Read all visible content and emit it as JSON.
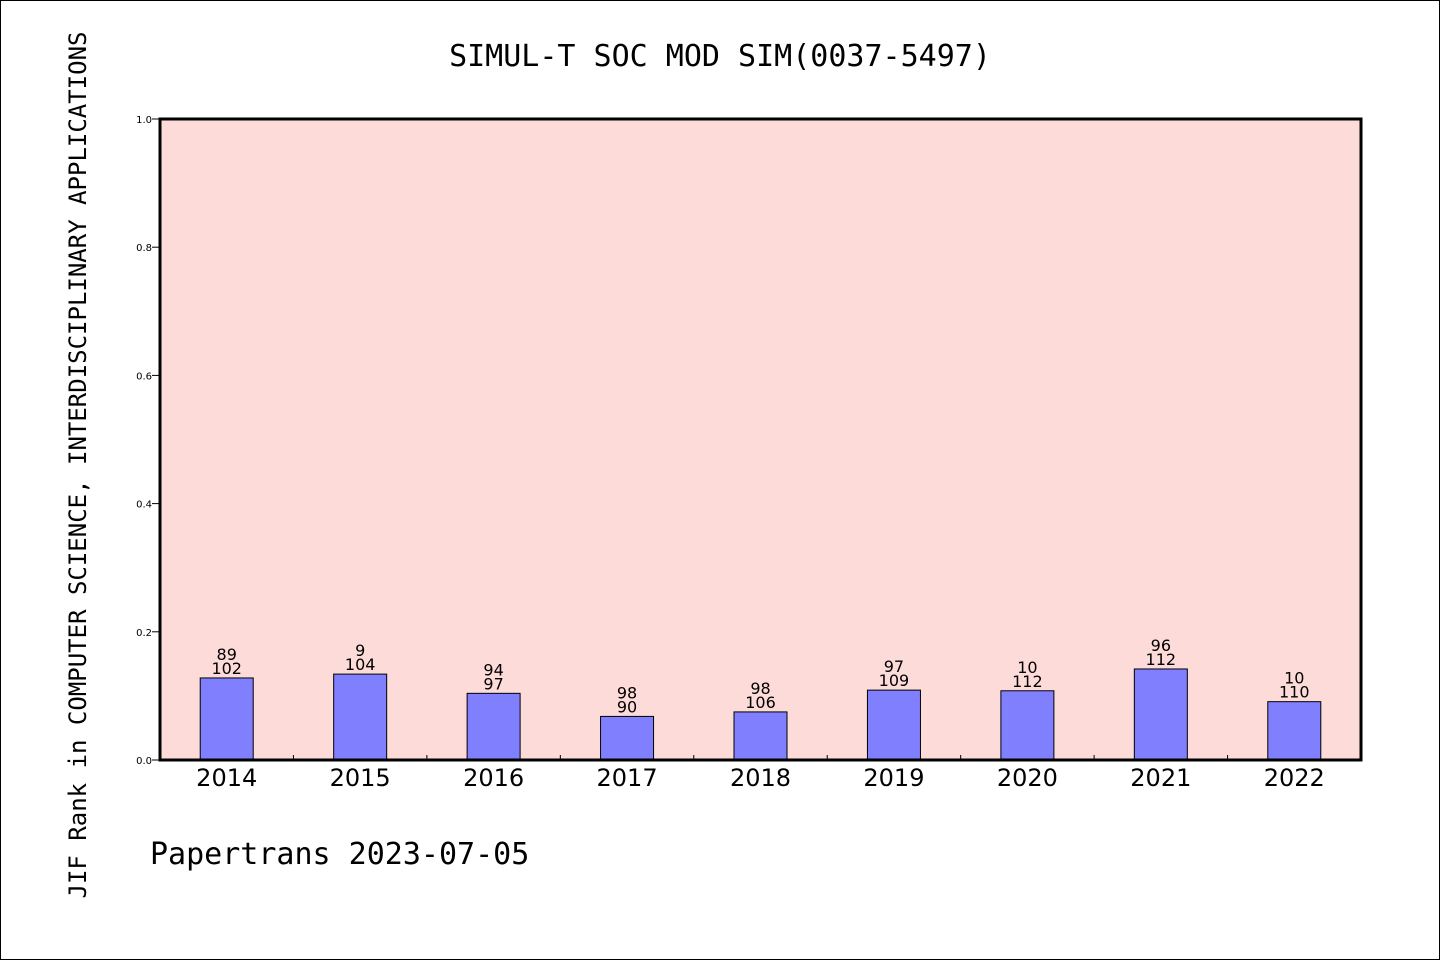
{
  "chart_data": {
    "type": "bar",
    "title": "SIMUL-T SOC MOD SIM(0037-5497)",
    "ylabel": "JIF Rank in COMPUTER SCIENCE, INTERDISCIPLINARY APPLICATIONS",
    "xlabel": "",
    "categories": [
      "2014",
      "2015",
      "2016",
      "2017",
      "2018",
      "2019",
      "2020",
      "2021",
      "2022"
    ],
    "values": [
      0.128,
      0.134,
      0.104,
      0.068,
      0.075,
      0.109,
      0.108,
      0.142,
      0.091
    ],
    "bar_labels": [
      [
        "89",
        "102"
      ],
      [
        "9",
        "104"
      ],
      [
        "94",
        "97"
      ],
      [
        "98",
        "90"
      ],
      [
        "98",
        "106"
      ],
      [
        "97",
        "109"
      ],
      [
        "10",
        "112"
      ],
      [
        "96",
        "112"
      ],
      [
        "10",
        "110"
      ]
    ],
    "ylim": [
      0,
      1.0
    ],
    "yticks": [
      "0.0",
      "0.2",
      "0.4",
      "0.6",
      "0.8",
      "1.0"
    ],
    "grid": false,
    "colors": {
      "plot_background": "#fddbd8",
      "bar_fill": "#8080ff",
      "bar_stroke": "#000000"
    }
  },
  "footer": {
    "text": "Papertrans 2023-07-05"
  }
}
